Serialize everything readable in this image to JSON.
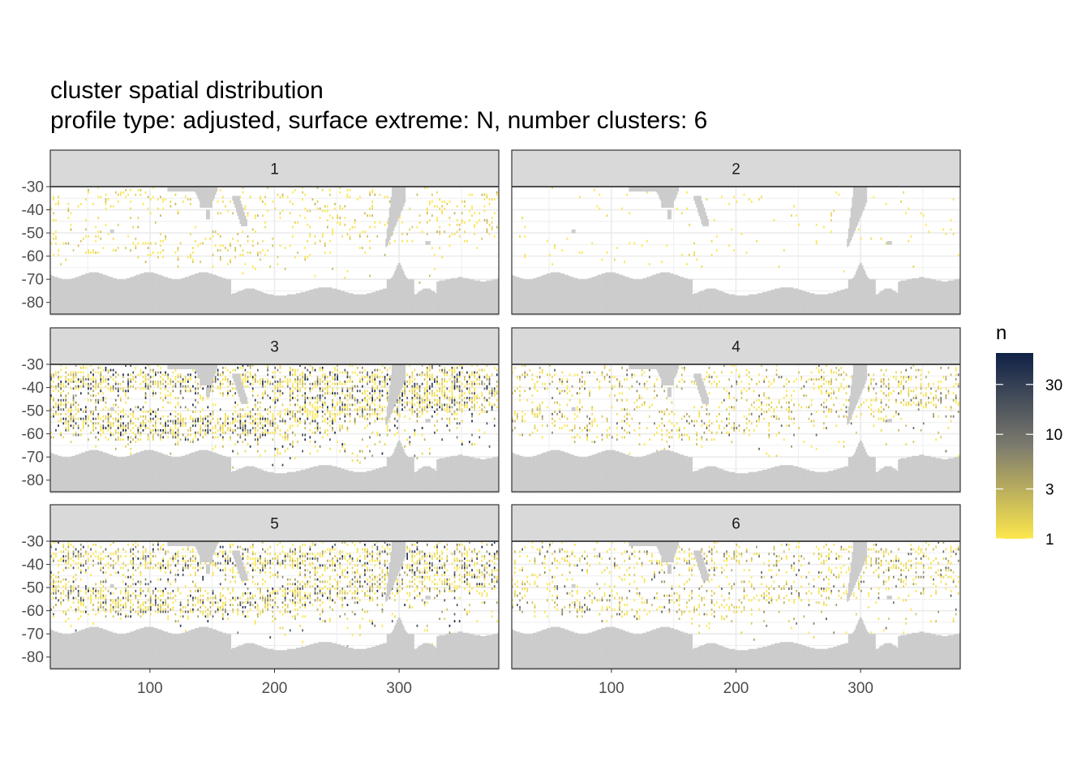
{
  "title": "cluster spatial distribution",
  "subtitle": "profile type: adjusted, surface extreme: N, number clusters: 6",
  "chart_data": {
    "type": "heatmap",
    "facet_labels": [
      "1",
      "2",
      "3",
      "4",
      "5",
      "6"
    ],
    "x_ticks": [
      100,
      200,
      300
    ],
    "x_tick_labels": [
      "100",
      "200",
      "300"
    ],
    "y_ticks": [
      -30,
      -40,
      -50,
      -60,
      -70,
      -80
    ],
    "y_tick_labels": [
      "-30",
      "-40",
      "-50",
      "-60",
      "-70",
      "-80"
    ],
    "xlim": [
      20,
      380
    ],
    "ylim": [
      -85,
      -30
    ],
    "fill_scale": "log10",
    "legend": {
      "title": "n",
      "breaks": [
        1,
        3,
        10,
        30
      ],
      "labels": [
        "1",
        "3",
        "10",
        "30"
      ],
      "range": [
        1,
        60
      ],
      "placement": "right"
    },
    "colors": {
      "low": "#fde74c",
      "mid": "#7d7b6e",
      "high": "#0f2147",
      "land": "#cccccc",
      "panel_bg": "#ffffff",
      "grid": "#ebebeb",
      "strip_bg": "#d9d9d9"
    },
    "panel_density": [
      {
        "panel": "1",
        "relative_density": 0.25,
        "relative_intensity": 0.12
      },
      {
        "panel": "2",
        "relative_density": 0.05,
        "relative_intensity": 0.05
      },
      {
        "panel": "3",
        "relative_density": 1.0,
        "relative_intensity": 0.55
      },
      {
        "panel": "4",
        "relative_density": 0.45,
        "relative_intensity": 0.3
      },
      {
        "panel": "5",
        "relative_density": 0.85,
        "relative_intensity": 0.5
      },
      {
        "panel": "6",
        "relative_density": 0.45,
        "relative_intensity": 0.32
      }
    ]
  }
}
